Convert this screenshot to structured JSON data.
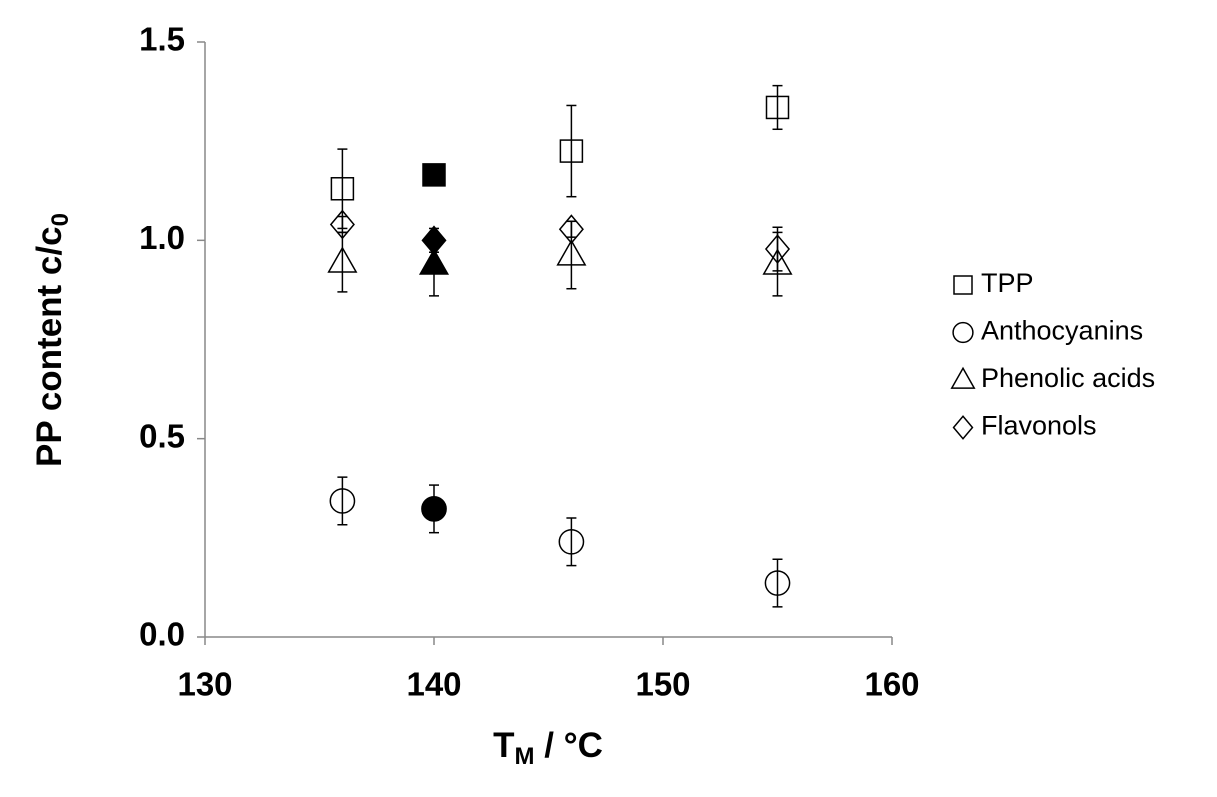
{
  "chart_data": {
    "type": "scatter",
    "x_label": [
      "T",
      "M",
      " / °C"
    ],
    "y_label": [
      "PP content c/c",
      "0"
    ],
    "x": [
      136,
      140,
      146,
      155
    ],
    "series": [
      {
        "name": "TPP",
        "marker": "square",
        "color": "#000000",
        "filled": [
          false,
          true,
          false,
          false
        ],
        "values": [
          1.13,
          1.165,
          1.225,
          1.335
        ],
        "errors": [
          0.1,
          null,
          0.115,
          0.055
        ]
      },
      {
        "name": "Anthocyanins",
        "marker": "circle",
        "color": "#000000",
        "filled": [
          false,
          true,
          false,
          false
        ],
        "values": [
          0.343,
          0.323,
          0.24,
          0.136
        ],
        "errors": [
          0.06,
          0.06,
          0.06,
          0.06
        ]
      },
      {
        "name": "Phenolic acids",
        "marker": "triangle",
        "color": "#000000",
        "filled": [
          false,
          true,
          false,
          false
        ],
        "values": [
          0.945,
          0.94,
          0.963,
          0.94
        ],
        "errors": [
          0.075,
          0.08,
          0.085,
          0.08
        ]
      },
      {
        "name": "Flavonols",
        "marker": "diamond",
        "color": "#000000",
        "filled": [
          false,
          true,
          false,
          false
        ],
        "values": [
          1.04,
          1.0,
          1.028,
          0.978
        ],
        "errors": [
          0.02,
          0.03,
          0.02,
          0.055
        ]
      }
    ],
    "xlim": [
      130,
      160
    ],
    "xticks": [
      130,
      140,
      150,
      160
    ],
    "ylim": [
      0,
      1.5
    ],
    "yticks": [
      {
        "value": 0,
        "label": "0.0"
      },
      {
        "value": 0.5,
        "label": "0.5"
      },
      {
        "value": 1,
        "label": "1.0"
      },
      {
        "value": 1.5,
        "label": "1.5"
      }
    ],
    "grid": false,
    "legend": "right"
  }
}
